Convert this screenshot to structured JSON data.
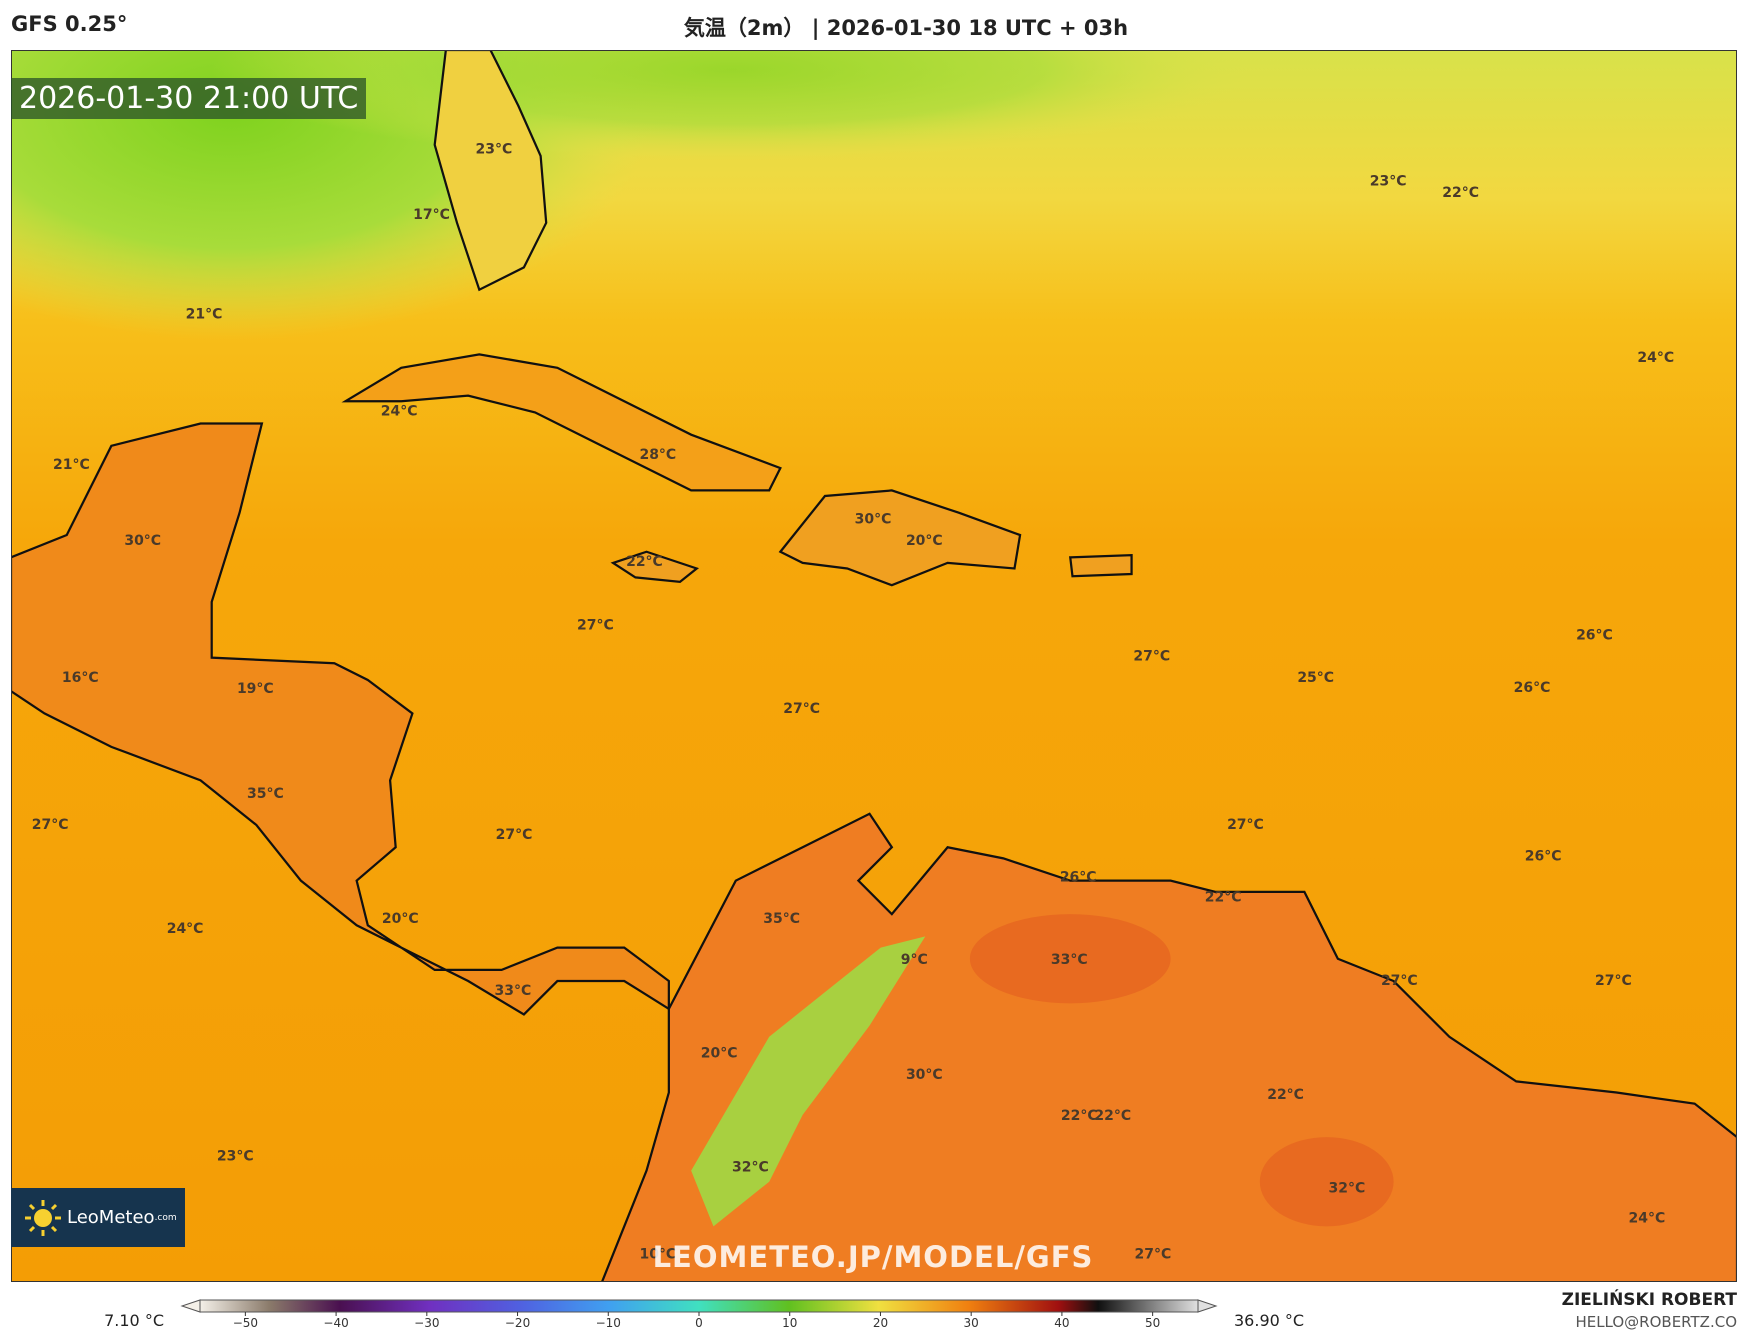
{
  "header": {
    "model": "GFS 0.25°",
    "title": "気温（2m） | 2026-01-30 18 UTC + 03h"
  },
  "map": {
    "timestamp": "2026-01-30 21:00 UTC",
    "labels": [
      "23°C",
      "17°C",
      "23°C",
      "22°C",
      "21°C",
      "24°C",
      "24°C",
      "21°C",
      "28°C",
      "30°C",
      "30°C",
      "20°C",
      "22°C",
      "27°C",
      "26°C",
      "27°C",
      "16°C",
      "25°C",
      "19°C",
      "26°C",
      "27°C",
      "35°C",
      "27°C",
      "27°C",
      "27°C",
      "26°C",
      "26°C",
      "22°C",
      "20°C",
      "35°C",
      "24°C",
      "9°C",
      "33°C",
      "27°C",
      "27°C",
      "33°C",
      "20°C",
      "30°C",
      "22°C",
      "22°C",
      "22°C",
      "32°C",
      "23°C",
      "32°C",
      "24°C",
      "10°C",
      "27°C"
    ],
    "logo": "LeoMeteo",
    "logo_suffix": ".com",
    "watermark": "LEOMETEO.JP/MODEL/GFS"
  },
  "colorbar": {
    "min_label": "7.10 °C",
    "max_label": "36.90 °C",
    "lim": [
      -55,
      55
    ],
    "ticks": [
      {
        "value": -50,
        "label": "−50"
      },
      {
        "value": -40,
        "label": "−40"
      },
      {
        "value": -30,
        "label": "−30"
      },
      {
        "value": -20,
        "label": "−20"
      },
      {
        "value": -10,
        "label": "−10"
      },
      0,
      10,
      20,
      30,
      40,
      50
    ]
  },
  "footer": {
    "author": "ZIELIŃSKI ROBERT",
    "email": "HELLO@ROBERTZ.CO"
  }
}
